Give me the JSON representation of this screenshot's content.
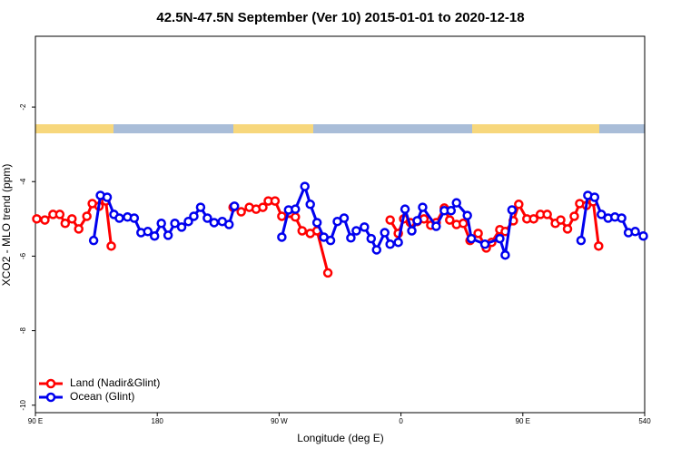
{
  "chart_data": {
    "type": "line",
    "title": "42.5N-47.5N September (Ver 10)   2015-01-01 to 2020-12-18",
    "x_label": "Longitude (deg E)",
    "y_label": "XCO2 - MLO trend (ppm)",
    "xlim": [
      90,
      540
    ],
    "xticks": [
      {
        "value": 90,
        "label": "90 E"
      },
      180,
      {
        "value": 270,
        "label": "90 W"
      },
      {
        "value": 360,
        "label": "0"
      },
      {
        "value": 450,
        "label": "90 E"
      },
      540
    ],
    "ylim": [
      -10.2,
      -0.1
    ],
    "yticks": [
      -2,
      -4,
      -6,
      -8,
      -10
    ],
    "legend": "bottomleft",
    "series": [
      {
        "name": "Land (Nadir&Glint)",
        "color": "#ff0000",
        "x": [
          91,
          97,
          103,
          108,
          112,
          117,
          122,
          128,
          132,
          137,
          142,
          146,
          null,
          236,
          242,
          248,
          253,
          258,
          262,
          267,
          272,
          282,
          287,
          293,
          298,
          306,
          null,
          352,
          358,
          362,
          367,
          372,
          377,
          382,
          386,
          392,
          396,
          401,
          406,
          411,
          417,
          423,
          427,
          433,
          437,
          443,
          447,
          453,
          458,
          463,
          468,
          474,
          478,
          483,
          488,
          492,
          497,
          502,
          506
        ],
        "values": [
          -5.0,
          -5.03,
          -4.88,
          -4.88,
          -5.12,
          -5.0,
          -5.27,
          -4.93,
          -4.59,
          -4.66,
          -4.52,
          -5.73,
          null,
          -4.69,
          -4.81,
          -4.69,
          -4.74,
          -4.69,
          -4.52,
          -4.52,
          -4.93,
          -4.95,
          -5.32,
          -5.39,
          -5.32,
          -6.45,
          null,
          -5.03,
          -5.39,
          -5.0,
          -5.1,
          -5.07,
          -5.0,
          -5.17,
          -5.1,
          -4.71,
          -5.03,
          -5.15,
          -5.12,
          -5.58,
          -5.39,
          -5.78,
          -5.63,
          -5.29,
          -5.34,
          -5.05,
          -4.61,
          -5.0,
          -5.0,
          -4.88,
          -4.88,
          -5.12,
          -5.03,
          -5.27,
          -4.93,
          -4.59,
          -4.64,
          -4.54,
          -5.73
        ]
      },
      {
        "name": "Ocean (Glint)",
        "color": "#0000ee",
        "x": [
          133,
          138,
          143,
          148,
          152,
          158,
          163,
          168,
          173,
          178,
          183,
          188,
          193,
          198,
          203,
          207,
          212,
          217,
          222,
          228,
          233,
          237,
          null,
          272,
          277,
          282,
          289,
          293,
          298,
          303,
          308,
          313,
          318,
          323,
          327,
          333,
          338,
          342,
          348,
          352,
          358,
          363,
          368,
          372,
          376,
          386,
          392,
          397,
          401,
          409,
          412,
          422,
          433,
          437,
          442,
          null,
          493,
          498,
          503,
          508,
          513,
          518,
          523,
          528,
          533,
          539
        ],
        "values": [
          -5.58,
          -4.37,
          -4.42,
          -4.88,
          -4.98,
          -4.95,
          -4.98,
          -5.37,
          -5.34,
          -5.46,
          -5.12,
          -5.44,
          -5.12,
          -5.22,
          -5.07,
          -4.93,
          -4.69,
          -4.98,
          -5.1,
          -5.07,
          -5.15,
          -4.66,
          null,
          -5.49,
          -4.76,
          -4.74,
          -4.13,
          -4.61,
          -5.1,
          -5.49,
          -5.58,
          -5.07,
          -4.98,
          -5.51,
          -5.32,
          -5.22,
          -5.53,
          -5.83,
          -5.37,
          -5.68,
          -5.63,
          -4.74,
          -5.32,
          -5.05,
          -4.69,
          -5.2,
          -4.78,
          -4.78,
          -4.57,
          -4.91,
          -5.53,
          -5.68,
          -5.53,
          -5.97,
          -4.76,
          null,
          -5.58,
          -4.37,
          -4.42,
          -4.88,
          -4.98,
          -4.95,
          -4.98,
          -5.37,
          -5.34,
          -5.46
        ]
      }
    ]
  }
}
